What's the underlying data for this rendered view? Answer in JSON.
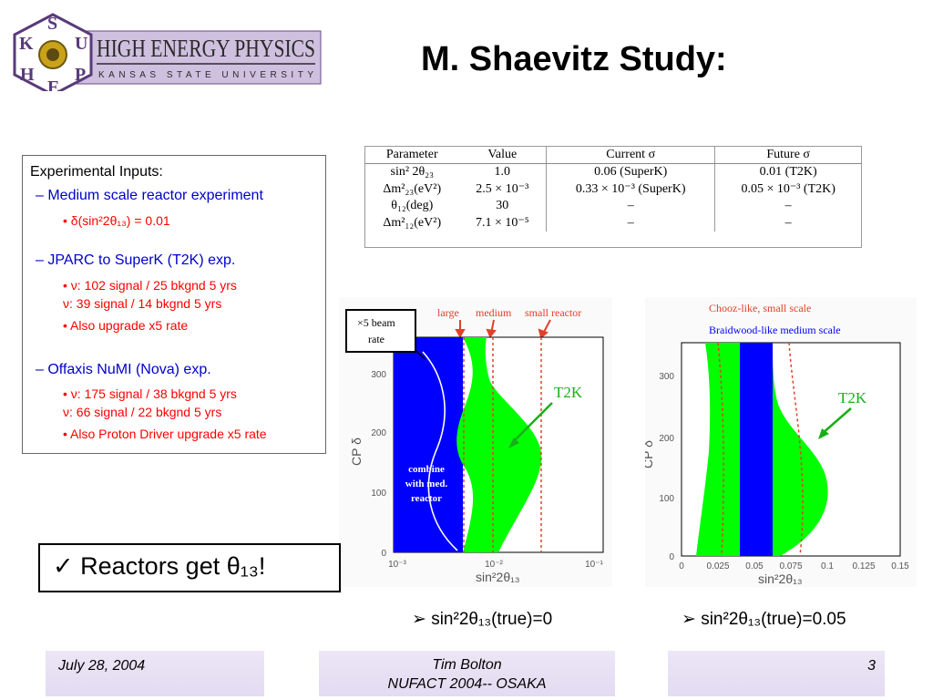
{
  "header": {
    "logo_main": "HIGH ENERGY PHYSICS",
    "logo_sub": "KANSAS   STATE   UNIVERSITY",
    "logo_letters": [
      "K",
      "S",
      "U",
      "H",
      "E",
      "P"
    ],
    "title": "M. Shaevitz Study:"
  },
  "inputs": {
    "heading": "Experimental Inputs:",
    "sections": [
      {
        "label": "– Medium scale reactor experiment",
        "items": [
          "•   δ(sin²2θ₁₃) = 0.01"
        ]
      },
      {
        "label": "– JPARC to SuperK (T2K) exp.",
        "items": [
          "•     ν: 102 signal / 25 bkgnd  5 yrs",
          "        ν:  39 signal / 14 bkgnd  5 yrs",
          "•  Also upgrade x5 rate"
        ]
      },
      {
        "label": "– Offaxis NuMI (Nova) exp.",
        "items": [
          "•     ν: 175 signal / 38 bkgnd  5 yrs",
          "        ν:  66 signal / 22 bkgnd  5 yrs",
          "•  Also Proton Driver upgrade x5 rate"
        ]
      }
    ]
  },
  "param_table": {
    "headers": [
      "Parameter",
      "Value",
      "Current σ",
      "Future σ"
    ],
    "rows": [
      [
        "sin² 2θ₂₃",
        "1.0",
        "0.06 (SuperK)",
        "0.01 (T2K)"
      ],
      [
        "Δm²₂₃(eV²)",
        "2.5 × 10⁻³",
        "0.33 × 10⁻³ (SuperK)",
        "0.05 × 10⁻³ (T2K)"
      ],
      [
        "θ₁₂(deg)",
        "30",
        "–",
        "–"
      ],
      [
        "Δm²₁₂(eV²)",
        "7.1 × 10⁻⁵",
        "–",
        "–"
      ]
    ]
  },
  "chart_data": [
    {
      "type": "area",
      "xlabel": "sin²2θ₁₃",
      "ylabel": "CP δ",
      "x_scale": "log",
      "xlim": [
        0.001,
        0.1
      ],
      "ylim": [
        0,
        360
      ],
      "xticks": [
        "10⁻³",
        "10⁻²",
        "10⁻¹"
      ],
      "yticks": [
        0,
        100,
        200,
        300
      ],
      "annotations": [
        "large",
        "medium",
        "small reactor",
        "×5 beam rate",
        "combine with med. reactor",
        "T2K"
      ],
      "reactor_lines_x": [
        0.004,
        0.01,
        0.03
      ],
      "colors": {
        "blue": "#0000ff",
        "green": "#00ff00"
      }
    },
    {
      "type": "area",
      "xlabel": "sin²2θ₁₃",
      "ylabel": "CP δ",
      "xlim": [
        0,
        0.15
      ],
      "ylim": [
        0,
        360
      ],
      "xticks": [
        "0",
        "0.025",
        "0.05",
        "0.075",
        "0.1",
        "0.125",
        "0.15"
      ],
      "yticks": [
        0,
        100,
        200,
        300
      ],
      "legend": [
        "Chooz-like, small scale",
        "Braidwood-like medium scale"
      ],
      "annotations": [
        "T2K"
      ],
      "blue_band_x": [
        0.04,
        0.06
      ],
      "colors": {
        "blue": "#0000ff",
        "green": "#00ff00"
      }
    }
  ],
  "plots": {
    "left": {
      "ytick_labels": [
        "300",
        "200",
        "100",
        "0"
      ],
      "xtick_labels": [
        "10⁻³",
        "10⁻²",
        "10⁻¹"
      ],
      "xlabel": "sin²2θ₁₃",
      "ylabel": "CP δ",
      "labels": [
        "large",
        "medium",
        "small reactor"
      ],
      "beam_label": [
        "×5 beam",
        "rate"
      ],
      "combine": [
        "combine",
        "with med.",
        "reactor"
      ],
      "t2k": "T2K"
    },
    "right": {
      "ytick_labels": [
        "300",
        "200",
        "100",
        "0"
      ],
      "xtick_labels": [
        "0",
        "0.025",
        "0.05",
        "0.075",
        "0.1",
        "0.125",
        "0.15"
      ],
      "xlabel": "sin²2θ₁₃",
      "ylabel": "CP δ",
      "legend1": "Chooz-like, small scale",
      "legend2": "Braidwood-like medium scale",
      "t2k": "T2K"
    }
  },
  "reactors": {
    "check": "✓",
    "text": "Reactors get θ₁₃!"
  },
  "captions": [
    "➢ sin²2θ₁₃(true)=0",
    "➢ sin²2θ₁₃(true)=0.05"
  ],
  "footer": {
    "date": "July 28, 2004",
    "author": "Tim Bolton",
    "conference": "NUFACT 2004-- OSAKA",
    "page": "3"
  }
}
